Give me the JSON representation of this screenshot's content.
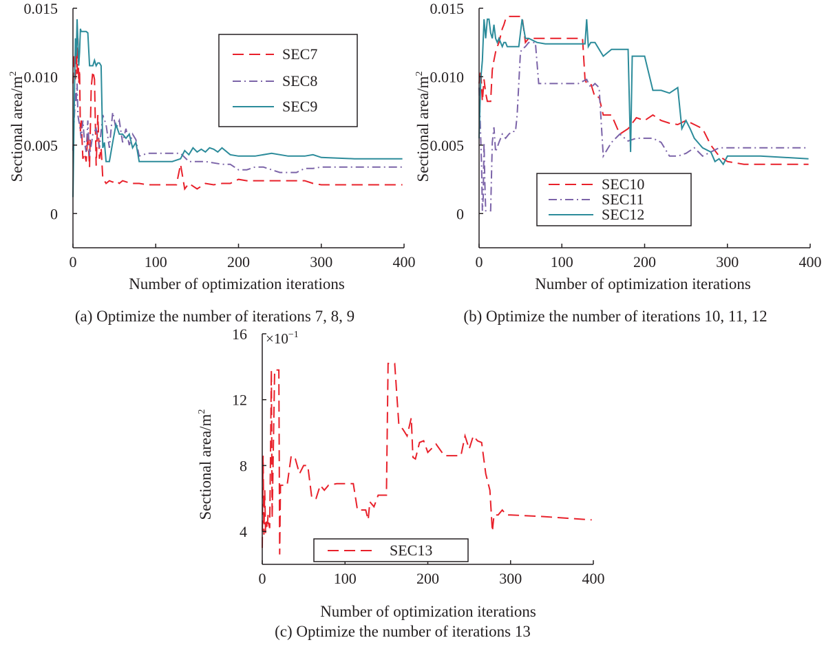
{
  "colors": {
    "axis": "#231f20",
    "red": "#e8202a",
    "purple": "#7b63a8",
    "teal": "#2b8b9a",
    "legend_border": "#231f20"
  },
  "chart_data": [
    {
      "type": "line",
      "id": "a",
      "caption": "(a) Optimize the number of iterations 7, 8, 9",
      "xlabel": "Number of optimization iterations",
      "ylabel": "Sectional area/m",
      "ylabel_sup": "2",
      "xlim": [
        0,
        400
      ],
      "ylim": [
        -0.0025,
        0.015
      ],
      "xticks": [
        0,
        100,
        200,
        300,
        400
      ],
      "xtick_labels": [
        "0",
        "100",
        "200",
        "300",
        "400"
      ],
      "yticks": [
        0,
        0.005,
        0.01,
        0.015
      ],
      "ytick_labels": [
        "0",
        "0.005",
        "0.010",
        "0.015"
      ],
      "legend": [
        "SEC7",
        "SEC8",
        "SEC9"
      ],
      "series": [
        {
          "name": "SEC7",
          "color_key": "red",
          "dash": "16 8",
          "x": [
            0,
            1,
            2,
            3,
            4,
            5,
            6,
            7,
            8,
            9,
            10,
            12,
            14,
            16,
            18,
            20,
            22,
            24,
            26,
            28,
            30,
            32,
            34,
            36,
            40,
            44,
            48,
            52,
            56,
            60,
            70,
            80,
            90,
            100,
            110,
            115,
            120,
            125,
            130,
            135,
            140,
            150,
            160,
            170,
            180,
            190,
            200,
            210,
            220,
            230,
            240,
            250,
            260,
            270,
            280,
            290,
            300,
            320,
            340,
            360,
            380,
            398
          ],
          "y": [
            0.0095,
            0.0115,
            0.0108,
            0.0098,
            0.0118,
            0.0102,
            0.0128,
            0.0095,
            0.0105,
            0.006,
            0.0068,
            0.004,
            0.0044,
            0.0038,
            0.0058,
            0.0034,
            0.0092,
            0.0104,
            0.0098,
            0.0035,
            0.0072,
            0.004,
            0.0048,
            0.0026,
            0.0022,
            0.0024,
            0.0023,
            0.0024,
            0.0022,
            0.0024,
            0.0022,
            0.0022,
            0.0021,
            0.0021,
            0.0021,
            0.0021,
            0.0021,
            0.0021,
            0.0036,
            0.0018,
            0.0022,
            0.0018,
            0.0022,
            0.0021,
            0.0022,
            0.0022,
            0.0025,
            0.0024,
            0.0024,
            0.0024,
            0.0024,
            0.0024,
            0.0024,
            0.0024,
            0.0024,
            0.0022,
            0.0021,
            0.0021,
            0.0021,
            0.0021,
            0.0021,
            0.0021
          ]
        },
        {
          "name": "SEC8",
          "color_key": "purple",
          "dash": "12 5 2 5",
          "x": [
            0,
            1,
            2,
            3,
            4,
            5,
            6,
            7,
            8,
            9,
            10,
            12,
            14,
            16,
            18,
            20,
            24,
            28,
            32,
            36,
            40,
            44,
            48,
            52,
            56,
            60,
            64,
            68,
            72,
            76,
            80,
            90,
            100,
            110,
            120,
            130,
            140,
            150,
            160,
            170,
            180,
            190,
            200,
            210,
            220,
            230,
            240,
            250,
            260,
            270,
            280,
            290,
            300,
            320,
            340,
            360,
            380,
            398
          ],
          "y": [
            0.0046,
            0.0062,
            0.0075,
            0.0088,
            0.0082,
            0.0095,
            0.0072,
            0.0068,
            0.0065,
            0.006,
            0.0055,
            0.0068,
            0.0052,
            0.0045,
            0.0068,
            0.0042,
            0.0058,
            0.0062,
            0.0048,
            0.0072,
            0.0065,
            0.0048,
            0.0074,
            0.0062,
            0.0068,
            0.0052,
            0.0062,
            0.005,
            0.0058,
            0.0054,
            0.0042,
            0.0044,
            0.0044,
            0.0044,
            0.0044,
            0.0044,
            0.0038,
            0.0038,
            0.0038,
            0.0037,
            0.0036,
            0.0036,
            0.0032,
            0.0032,
            0.0034,
            0.0034,
            0.0032,
            0.003,
            0.003,
            0.003,
            0.0033,
            0.0033,
            0.0034,
            0.0034,
            0.0034,
            0.0034,
            0.0034,
            0.0034
          ]
        },
        {
          "name": "SEC9",
          "color_key": "teal",
          "dash": "",
          "x": [
            0,
            1,
            2,
            3,
            4,
            5,
            6,
            7,
            8,
            9,
            10,
            12,
            14,
            16,
            18,
            20,
            22,
            24,
            26,
            28,
            30,
            32,
            34,
            36,
            38,
            40,
            44,
            48,
            52,
            56,
            60,
            64,
            68,
            72,
            76,
            80,
            90,
            100,
            110,
            120,
            130,
            135,
            140,
            145,
            150,
            155,
            160,
            165,
            170,
            175,
            180,
            190,
            200,
            220,
            240,
            260,
            280,
            290,
            300,
            340,
            398
          ],
          "y": [
            0.0012,
            0.0055,
            0.0095,
            0.0128,
            0.0115,
            0.0142,
            0.0125,
            0.0108,
            0.0118,
            0.0135,
            0.0133,
            0.0133,
            0.0133,
            0.0133,
            0.0132,
            0.0108,
            0.0108,
            0.0108,
            0.0112,
            0.0108,
            0.011,
            0.011,
            0.0108,
            0.0048,
            0.0052,
            0.0038,
            0.0038,
            0.0052,
            0.0065,
            0.0058,
            0.0058,
            0.0055,
            0.0058,
            0.0048,
            0.0052,
            0.0038,
            0.0038,
            0.0038,
            0.0038,
            0.0038,
            0.004,
            0.0046,
            0.0043,
            0.0048,
            0.0045,
            0.0047,
            0.0045,
            0.0048,
            0.0047,
            0.0045,
            0.0048,
            0.0043,
            0.0042,
            0.0042,
            0.0044,
            0.0042,
            0.0042,
            0.0043,
            0.0041,
            0.004,
            0.004
          ]
        }
      ]
    },
    {
      "type": "line",
      "id": "b",
      "caption": "(b) Optimize the number of iterations 10, 11, 12",
      "xlabel": "Number of optimization iterations",
      "ylabel": "Sectional area/m",
      "ylabel_sup": "2",
      "xlim": [
        0,
        400
      ],
      "ylim": [
        -0.0025,
        0.015
      ],
      "xticks": [
        0,
        100,
        200,
        300,
        400
      ],
      "xtick_labels": [
        "0",
        "100",
        "200",
        "300",
        "400"
      ],
      "yticks": [
        0,
        0.005,
        0.01,
        0.015
      ],
      "ytick_labels": [
        "0",
        "0.005",
        "0.010",
        "0.015"
      ],
      "legend": [
        "SEC10",
        "SEC11",
        "SEC12"
      ],
      "series": [
        {
          "name": "SEC10",
          "color_key": "red",
          "dash": "16 8",
          "x": [
            0,
            2,
            4,
            6,
            8,
            10,
            12,
            14,
            16,
            18,
            20,
            22,
            24,
            26,
            28,
            30,
            32,
            34,
            36,
            40,
            44,
            48,
            52,
            56,
            60,
            70,
            80,
            90,
            100,
            110,
            120,
            125,
            128,
            130,
            135,
            140,
            145,
            150,
            160,
            170,
            180,
            190,
            200,
            210,
            220,
            230,
            240,
            250,
            260,
            270,
            280,
            290,
            300,
            320,
            340,
            360,
            380,
            398
          ],
          "y": [
            0.0095,
            0.0105,
            0.0082,
            0.0098,
            0.0088,
            0.0082,
            0.0082,
            0.0082,
            0.0105,
            0.0112,
            0.0118,
            0.0122,
            0.0125,
            0.013,
            0.0135,
            0.0138,
            0.0142,
            0.0144,
            0.0144,
            0.0144,
            0.0144,
            0.0144,
            0.0144,
            0.0125,
            0.0128,
            0.0128,
            0.0128,
            0.0128,
            0.0128,
            0.0128,
            0.0128,
            0.0128,
            0.0098,
            0.0095,
            0.0095,
            0.0085,
            0.0085,
            0.0072,
            0.0072,
            0.0058,
            0.0062,
            0.007,
            0.0068,
            0.0072,
            0.0068,
            0.0066,
            0.0065,
            0.0068,
            0.0065,
            0.0062,
            0.005,
            0.0042,
            0.0038,
            0.0036,
            0.0036,
            0.0036,
            0.0036,
            0.0036
          ]
        },
        {
          "name": "SEC11",
          "color_key": "purple",
          "dash": "12 5 2 5",
          "x": [
            0,
            2,
            3,
            4,
            5,
            6,
            7,
            8,
            10,
            12,
            14,
            16,
            18,
            20,
            24,
            28,
            32,
            36,
            40,
            44,
            46,
            48,
            50,
            52,
            56,
            60,
            64,
            68,
            72,
            80,
            100,
            120,
            130,
            135,
            140,
            145,
            150,
            160,
            170,
            180,
            190,
            200,
            210,
            220,
            230,
            240,
            250,
            260,
            270,
            280,
            290,
            300,
            320,
            340,
            360,
            380,
            398
          ],
          "y": [
            0.0092,
            0.0055,
            0.0035,
            0.0002,
            0.0012,
            0.0052,
            0.0022,
            0.0002,
            0.0002,
            0.0002,
            0.0002,
            0.0052,
            0.0063,
            0.0045,
            0.0052,
            0.0058,
            0.0055,
            0.0058,
            0.006,
            0.006,
            0.0072,
            0.0095,
            0.0118,
            0.012,
            0.0122,
            0.0125,
            0.0125,
            0.0125,
            0.0095,
            0.0095,
            0.0095,
            0.0095,
            0.0098,
            0.0092,
            0.0095,
            0.0092,
            0.0042,
            0.0052,
            0.0058,
            0.0053,
            0.0055,
            0.0055,
            0.0055,
            0.0052,
            0.0042,
            0.0042,
            0.0044,
            0.0048,
            0.0042,
            0.0045,
            0.0048,
            0.0048,
            0.0048,
            0.0048,
            0.0048,
            0.0048,
            0.0048
          ]
        },
        {
          "name": "SEC12",
          "color_key": "teal",
          "dash": "",
          "x": [
            0,
            2,
            4,
            6,
            8,
            10,
            12,
            14,
            16,
            18,
            20,
            22,
            24,
            26,
            28,
            30,
            32,
            34,
            36,
            40,
            44,
            48,
            52,
            56,
            60,
            70,
            80,
            100,
            120,
            128,
            130,
            132,
            135,
            140,
            145,
            150,
            160,
            170,
            180,
            183,
            185,
            190,
            200,
            210,
            220,
            230,
            240,
            245,
            250,
            255,
            260,
            270,
            280,
            285,
            290,
            295,
            300,
            340,
            398
          ],
          "y": [
            0.0055,
            0.0098,
            0.0112,
            0.0142,
            0.0128,
            0.0142,
            0.0142,
            0.0132,
            0.0128,
            0.0138,
            0.0128,
            0.0125,
            0.0128,
            0.0125,
            0.0122,
            0.0125,
            0.0125,
            0.0122,
            0.0122,
            0.0122,
            0.0122,
            0.0122,
            0.0142,
            0.0128,
            0.0128,
            0.0125,
            0.0124,
            0.0124,
            0.0124,
            0.0124,
            0.0142,
            0.0122,
            0.0125,
            0.0125,
            0.012,
            0.0115,
            0.012,
            0.012,
            0.012,
            0.0045,
            0.0115,
            0.0115,
            0.0115,
            0.009,
            0.009,
            0.0088,
            0.0092,
            0.0062,
            0.0068,
            0.0062,
            0.0055,
            0.0048,
            0.0045,
            0.0038,
            0.004,
            0.0036,
            0.0042,
            0.0042,
            0.004
          ]
        }
      ]
    },
    {
      "type": "line",
      "id": "c",
      "caption": "(c) Optimize the number of iterations 13",
      "xlabel": "Number of optimization iterations",
      "ylabel": "Sectional area/m",
      "ylabel_sup": "2",
      "multiplier": "×10",
      "multiplier_exp": "−1",
      "xlim": [
        0,
        400
      ],
      "ylim": [
        2,
        16
      ],
      "xticks": [
        0,
        100,
        200,
        300,
        400
      ],
      "xtick_labels": [
        "0",
        "100",
        "200",
        "300",
        "400"
      ],
      "yticks": [
        4,
        8,
        12,
        16
      ],
      "ytick_labels": [
        "4",
        "8",
        "12",
        "16"
      ],
      "legend": [
        "SEC13"
      ],
      "series": [
        {
          "name": "SEC13",
          "color_key": "red",
          "dash": "16 8",
          "x": [
            0,
            1,
            2,
            3,
            4,
            5,
            6,
            7,
            8,
            9,
            10,
            11,
            12,
            15,
            18,
            20,
            21,
            22,
            24,
            26,
            30,
            35,
            40,
            45,
            50,
            55,
            60,
            65,
            70,
            75,
            80,
            90,
            100,
            110,
            115,
            120,
            125,
            128,
            130,
            135,
            140,
            145,
            150,
            152,
            155,
            160,
            165,
            170,
            175,
            180,
            182,
            185,
            190,
            195,
            200,
            210,
            220,
            230,
            240,
            245,
            250,
            255,
            260,
            265,
            270,
            275,
            278,
            280,
            285,
            290,
            295,
            300,
            340,
            398
          ],
          "y": [
            3.0,
            8.6,
            3.8,
            6.5,
            3.9,
            4.6,
            4.2,
            5.0,
            4.4,
            4.2,
            8.5,
            13.8,
            4.8,
            13.8,
            13.8,
            13.8,
            2.6,
            6.8,
            6.8,
            6.8,
            6.8,
            8.6,
            8.4,
            7.5,
            8.0,
            8.0,
            6.0,
            6.0,
            6.8,
            6.5,
            6.8,
            6.9,
            6.9,
            6.9,
            5.3,
            5.3,
            5.3,
            4.7,
            5.8,
            5.5,
            6.2,
            6.2,
            6.2,
            14.2,
            14.2,
            14.2,
            10.5,
            10.2,
            9.8,
            10.9,
            8.5,
            8.4,
            9.4,
            9.5,
            8.8,
            9.3,
            8.6,
            8.6,
            8.6,
            9.8,
            9.0,
            9.8,
            9.5,
            9.4,
            7.5,
            6.5,
            4.0,
            5.0,
            5.0,
            5.3,
            5.0,
            5.0,
            4.9,
            4.7
          ]
        }
      ]
    }
  ]
}
